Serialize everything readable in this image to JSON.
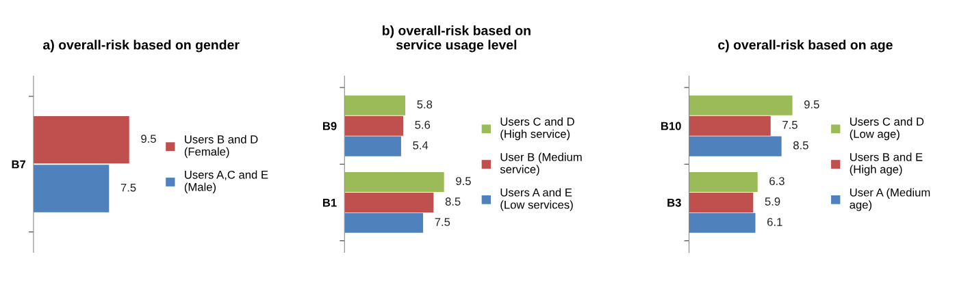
{
  "chart_data": [
    {
      "type": "bar",
      "orientation": "horizontal",
      "title": "a) overall-risk based on gender",
      "categories": [
        "B7"
      ],
      "data_labels": true,
      "legend": "right",
      "tick_labels": "y",
      "series": [
        {
          "name": "Users A,C and E\n(Male)",
          "color": "#4f81bd",
          "values": [
            7.5
          ]
        },
        {
          "name": "Users B and D\n(Female)",
          "color": "#c0504d",
          "values": [
            9.5
          ]
        }
      ]
    },
    {
      "type": "bar",
      "orientation": "horizontal",
      "title": "b) overall-risk based on\nservice usage level",
      "categories": [
        "B9",
        "B1"
      ],
      "data_labels": true,
      "legend": "right",
      "tick_labels": "y",
      "series": [
        {
          "name": "Users A and E\n(Low services)",
          "color": "#4f81bd",
          "values": [
            5.4,
            7.5
          ]
        },
        {
          "name": "User B (Medium\nservice)",
          "color": "#c0504d",
          "values": [
            5.6,
            8.5
          ]
        },
        {
          "name": "Users C and D\n(High service)",
          "color": "#9bbb59",
          "values": [
            5.8,
            9.5
          ]
        }
      ]
    },
    {
      "type": "bar",
      "orientation": "horizontal",
      "title": "c) overall-risk based on age",
      "categories": [
        "B10",
        "B3"
      ],
      "data_labels": true,
      "legend": "right",
      "tick_labels": "y",
      "series": [
        {
          "name": "User A (Medium\nage)",
          "color": "#4f81bd",
          "values": [
            8.5,
            6.1
          ]
        },
        {
          "name": "Users B and E\n(High age)",
          "color": "#c0504d",
          "values": [
            7.5,
            5.9
          ]
        },
        {
          "name": "Users C and D\n(Low age)",
          "color": "#9bbb59",
          "values": [
            9.5,
            6.3
          ]
        }
      ]
    }
  ]
}
